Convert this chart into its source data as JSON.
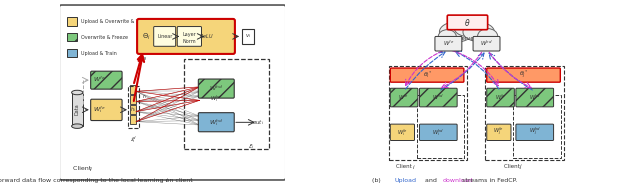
{
  "fig_width": 6.4,
  "fig_height": 1.85,
  "dpi": 100,
  "bg_color": "#ffffff",
  "legend_items": [
    {
      "label": "Upload & Overwrite & Train",
      "color": "#f5d57a",
      "hatch": ""
    },
    {
      "label": "Overwrite & Freeze",
      "color": "#7dc87d",
      "hatch": "//"
    },
    {
      "label": "Upload & Train",
      "color": "#7fb4d4",
      "hatch": ""
    }
  ],
  "caption_left": "(a) Forward data flow corresponding to the local learning on client ",
  "caption_left_italic": "i",
  "caption_right_prefix": "(b) ",
  "caption_right_upload": "Upload",
  "caption_right_mid": " and ",
  "caption_right_download": "download",
  "caption_right_suffix": " streams in FedCP.",
  "upload_color": "#3366cc",
  "download_color": "#cc33cc",
  "outline_color": "#222222",
  "red_color": "#cc0000",
  "gold_color": "#f5d57a",
  "green_color": "#7dc87d",
  "blue_color": "#7fb4d4",
  "gray_color": "#aaaaaa",
  "dark_color": "#333333"
}
